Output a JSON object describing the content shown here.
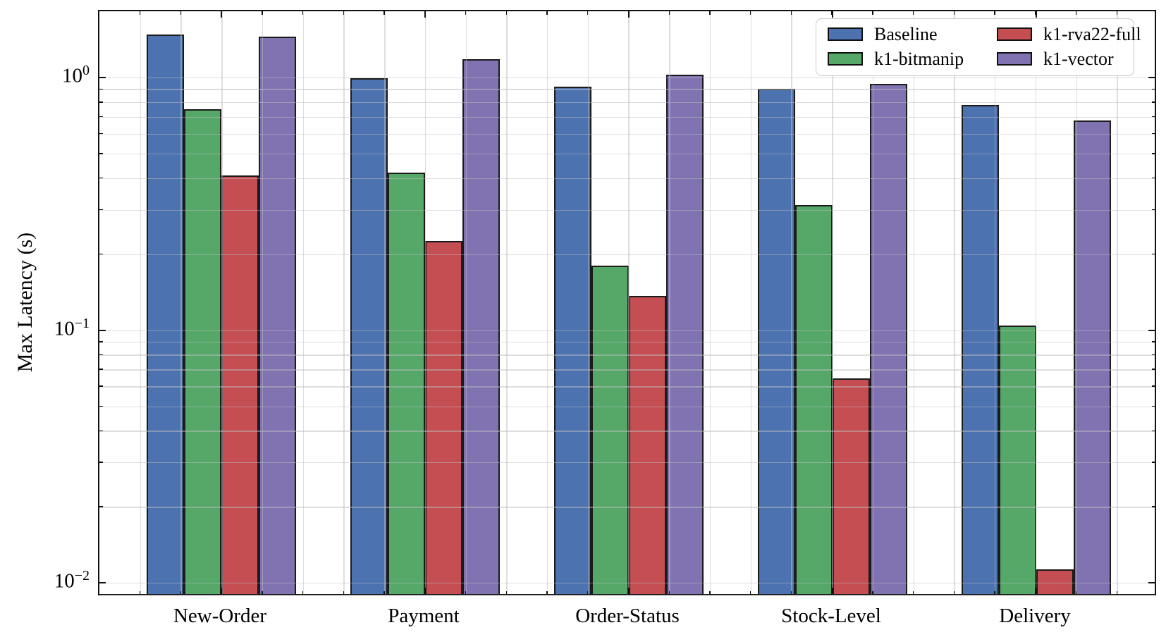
{
  "chart_data": {
    "type": "bar",
    "title": "",
    "xlabel": "",
    "ylabel": "Max Latency (s)",
    "yscale": "log",
    "ylim": [
      0.0088,
      1.83
    ],
    "grid": true,
    "categories": [
      "New-Order",
      "Payment",
      "Order-Status",
      "Stock-Level",
      "Delivery"
    ],
    "series": [
      {
        "name": "Baseline",
        "color": "#4C72B0",
        "values": [
          1.44,
          0.97,
          0.9,
          0.88,
          0.76
        ]
      },
      {
        "name": "k1-bitmanip",
        "color": "#55A868",
        "values": [
          0.73,
          0.41,
          0.175,
          0.305,
          0.102
        ]
      },
      {
        "name": "k1-rva22-full",
        "color": "#C44E52",
        "values": [
          0.4,
          0.22,
          0.133,
          0.063,
          0.011
        ]
      },
      {
        "name": "k1-vector",
        "color": "#8172B2",
        "values": [
          1.42,
          1.15,
          1.0,
          0.92,
          0.66
        ]
      }
    ],
    "y_major_ticks": [
      {
        "value": 1,
        "base": "10",
        "exponent": "0"
      },
      {
        "value": 0.1,
        "base": "10",
        "exponent": "−1"
      },
      {
        "value": 0.01,
        "base": "10",
        "exponent": "−2"
      }
    ],
    "legend": {
      "position": "upper right",
      "columns": 2,
      "order_column_major": true
    },
    "bar_edge_color": "#1b1b1b",
    "grid_color": "#bdbdbd"
  }
}
